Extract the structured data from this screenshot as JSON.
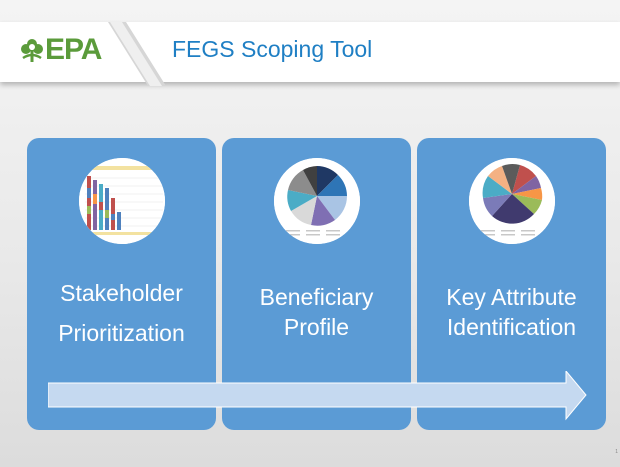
{
  "header": {
    "logo_text": "EPA",
    "title": "FEGS Scoping Tool"
  },
  "cards": [
    {
      "lines": [
        "Stakeholder",
        "Prioritization"
      ],
      "icon": "bar-chart-thumbnail"
    },
    {
      "lines": [
        "Beneficiary",
        "Profile"
      ],
      "icon": "pie-chart-thumbnail"
    },
    {
      "lines": [
        "Key Attribute",
        "Identification"
      ],
      "icon": "pie-chart-thumbnail"
    }
  ],
  "footer": {
    "page_number": "1"
  },
  "colors": {
    "card": "#5b9bd5",
    "arrow": "#c5d9f0",
    "title": "#1f7fc4",
    "logo": "#5b9b3b"
  }
}
